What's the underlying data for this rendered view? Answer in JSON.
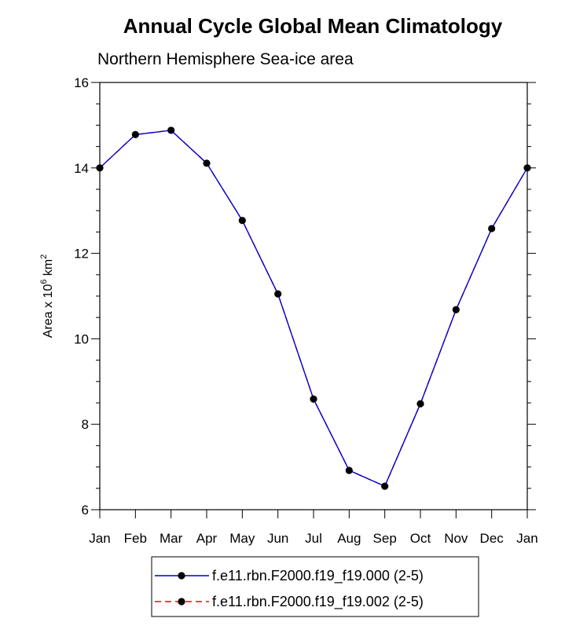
{
  "chart_data": {
    "type": "line",
    "title": "Annual Cycle Global Mean Climatology",
    "subtitle": "Northern Hemisphere Sea-ice area",
    "ylabel": {
      "base": "Area x 10",
      "exp1": "6",
      "mid": " km",
      "exp2": "2"
    },
    "xlabel": "",
    "categories": [
      "Jan",
      "Feb",
      "Mar",
      "Apr",
      "May",
      "Jun",
      "Jul",
      "Aug",
      "Sep",
      "Oct",
      "Nov",
      "Dec",
      "Jan"
    ],
    "ylim": [
      6,
      16
    ],
    "yticks": [
      6,
      8,
      10,
      12,
      14,
      16
    ],
    "series": [
      {
        "name": "f.e11.rbn.F2000.f19_f19.000 (2-5)",
        "color": "#0000cc",
        "dash": "solid",
        "values": [
          14.0,
          14.78,
          14.88,
          14.11,
          12.77,
          11.05,
          8.59,
          6.92,
          6.55,
          8.48,
          10.68,
          12.58,
          14.0
        ]
      },
      {
        "name": "f.e11.rbn.F2000.f19_f19.002 (2-5)",
        "color": "#ff0000",
        "dash": "dashed",
        "values": [
          14.0,
          14.78,
          14.88,
          14.11,
          12.77,
          11.05,
          8.59,
          6.92,
          6.55,
          8.48,
          10.68,
          12.58,
          14.0
        ]
      }
    ],
    "grid": false,
    "legend_position": "bottom"
  }
}
